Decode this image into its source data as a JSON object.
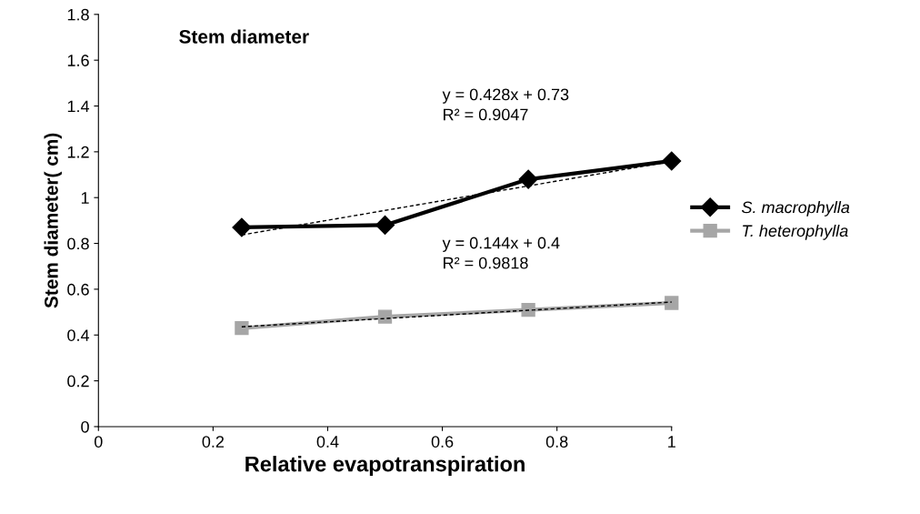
{
  "chart_data": {
    "type": "line",
    "title": "Stem diameter",
    "xlabel": "Relative evapotranspiration",
    "ylabel": "Stem diameter( cm)",
    "x": [
      0.25,
      0.5,
      0.75,
      1
    ],
    "series": [
      {
        "name": "S. macrophylla",
        "color": "#000000",
        "values": [
          0.87,
          0.88,
          1.08,
          1.16
        ],
        "marker": "diamond"
      },
      {
        "name": "T. heterophylla",
        "color": "#a6a6a6",
        "values": [
          0.43,
          0.48,
          0.51,
          0.54
        ],
        "marker": "square"
      },
      {
        "type": "line",
        "color": "#000000",
        "values": [
          0.837,
          0.944,
          1.051,
          1.158
        ],
        "marker": "none",
        "line_style": "dashed"
      },
      {
        "type": "line",
        "color": "#000000",
        "values": [
          0.436,
          0.472,
          0.508,
          0.544
        ],
        "marker": "none",
        "line_style": "dashed"
      }
    ],
    "xlim": [
      0,
      1
    ],
    "xticks": [
      0,
      0.2,
      0.4,
      0.6,
      0.8,
      1
    ],
    "ylim": [
      0,
      1.8
    ],
    "yticks": [
      0,
      0.2,
      0.4,
      0.6,
      0.8,
      1,
      1.2,
      1.4,
      1.6,
      1.8
    ],
    "annotations": [
      "y = 0.428x + 0.73\nR² = 0.9047",
      "y = 0.144x + 0.4\nR² = 0.9818"
    ],
    "grid": false,
    "legend": "right"
  }
}
